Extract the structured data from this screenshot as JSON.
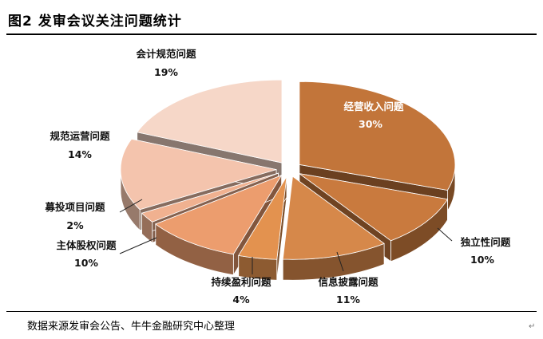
{
  "figure": {
    "title": "图2 发审会议关注问题统计",
    "source": "数据来源发审会公告、牛牛金融研究中心整理",
    "para_mark": "↵"
  },
  "chart_data": {
    "type": "pie",
    "title": "",
    "legend": "none",
    "slices": [
      {
        "name": "经营收入问题",
        "value": 30,
        "label": "30%",
        "color": "#c2753a"
      },
      {
        "name": "独立性问题",
        "value": 10,
        "label": "10%",
        "color": "#c97a3e"
      },
      {
        "name": "信息披露问题",
        "value": 11,
        "label": "11%",
        "color": "#d6884a"
      },
      {
        "name": "持续盈利问题",
        "value": 4,
        "label": "4%",
        "color": "#e3924f"
      },
      {
        "name": "主体股权问题",
        "value": 10,
        "label": "10%",
        "color": "#ec9d6e"
      },
      {
        "name": "募投项目问题",
        "value": 2,
        "label": "2%",
        "color": "#f0b190"
      },
      {
        "name": "规范运营问题",
        "value": 14,
        "label": "14%",
        "color": "#f4c4ad"
      },
      {
        "name": "会计规范问题",
        "value": 19,
        "label": "19%",
        "color": "#f6d7c8"
      }
    ]
  }
}
